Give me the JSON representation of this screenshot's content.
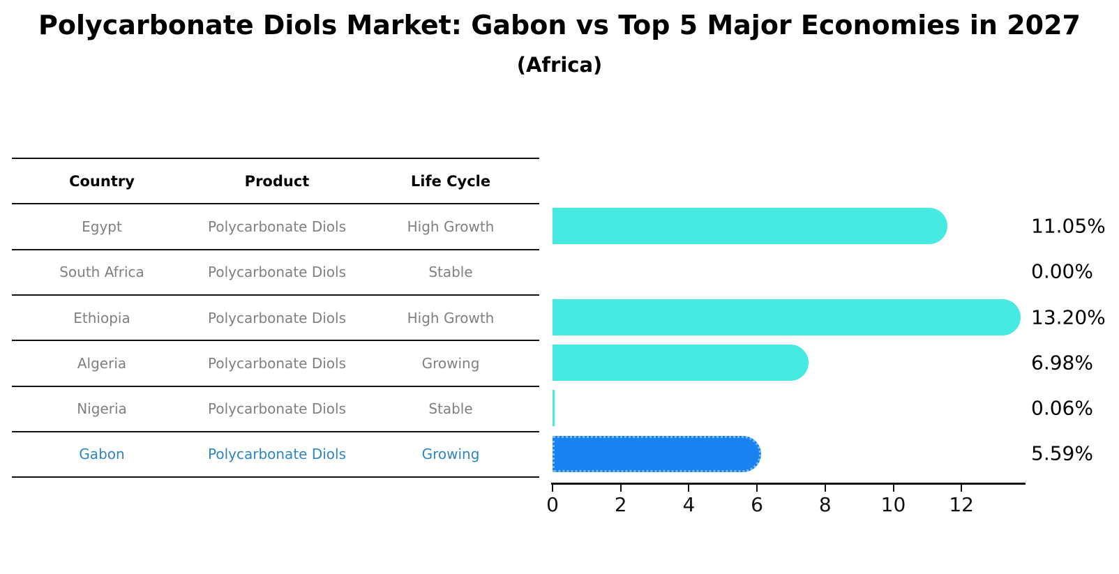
{
  "title": "Polycarbonate Diols Market: Gabon vs Top 5 Major Economies in 2027",
  "subtitle": "(Africa)",
  "table": {
    "headers": [
      "Country",
      "Product",
      "Life Cycle"
    ],
    "rows": [
      {
        "country": "Egypt",
        "product": "Polycarbonate Diols",
        "life_cycle": "High Growth",
        "highlight": false
      },
      {
        "country": "South Africa",
        "product": "Polycarbonate Diols",
        "life_cycle": "Stable",
        "highlight": false
      },
      {
        "country": "Ethiopia",
        "product": "Polycarbonate Diols",
        "life_cycle": "High Growth",
        "highlight": false
      },
      {
        "country": "Algeria",
        "product": "Polycarbonate Diols",
        "life_cycle": "Growing",
        "highlight": false
      },
      {
        "country": "Nigeria",
        "product": "Polycarbonate Diols",
        "life_cycle": "Stable",
        "highlight": false
      },
      {
        "country": "Gabon",
        "product": "Polycarbonate Diols",
        "life_cycle": "Growing",
        "highlight": true
      }
    ]
  },
  "chart_data": {
    "type": "bar",
    "orientation": "horizontal",
    "title": "Polycarbonate Diols Market: Gabon vs Top 5 Major Economies in 2027",
    "subtitle": "(Africa)",
    "categories": [
      "Egypt",
      "South Africa",
      "Ethiopia",
      "Algeria",
      "Nigeria",
      "Gabon"
    ],
    "values": [
      11.05,
      0.0,
      13.2,
      6.98,
      0.06,
      5.59
    ],
    "value_labels": [
      "11.05%",
      "0.00%",
      "13.20%",
      "6.98%",
      "0.06%",
      "5.59%"
    ],
    "xlabel": "",
    "ylabel": "",
    "x_ticks": [
      0,
      2,
      4,
      6,
      8,
      10,
      12
    ],
    "xlim": [
      0,
      13.8
    ],
    "grid": false,
    "legend": false,
    "highlight_index": 5
  },
  "colors": {
    "bar": "#47eae1",
    "highlight_bar": "#1a82f0",
    "highlight_text": "#2e86c1",
    "table_text": "#808080",
    "header_text": "#000000",
    "line": "#111111"
  }
}
